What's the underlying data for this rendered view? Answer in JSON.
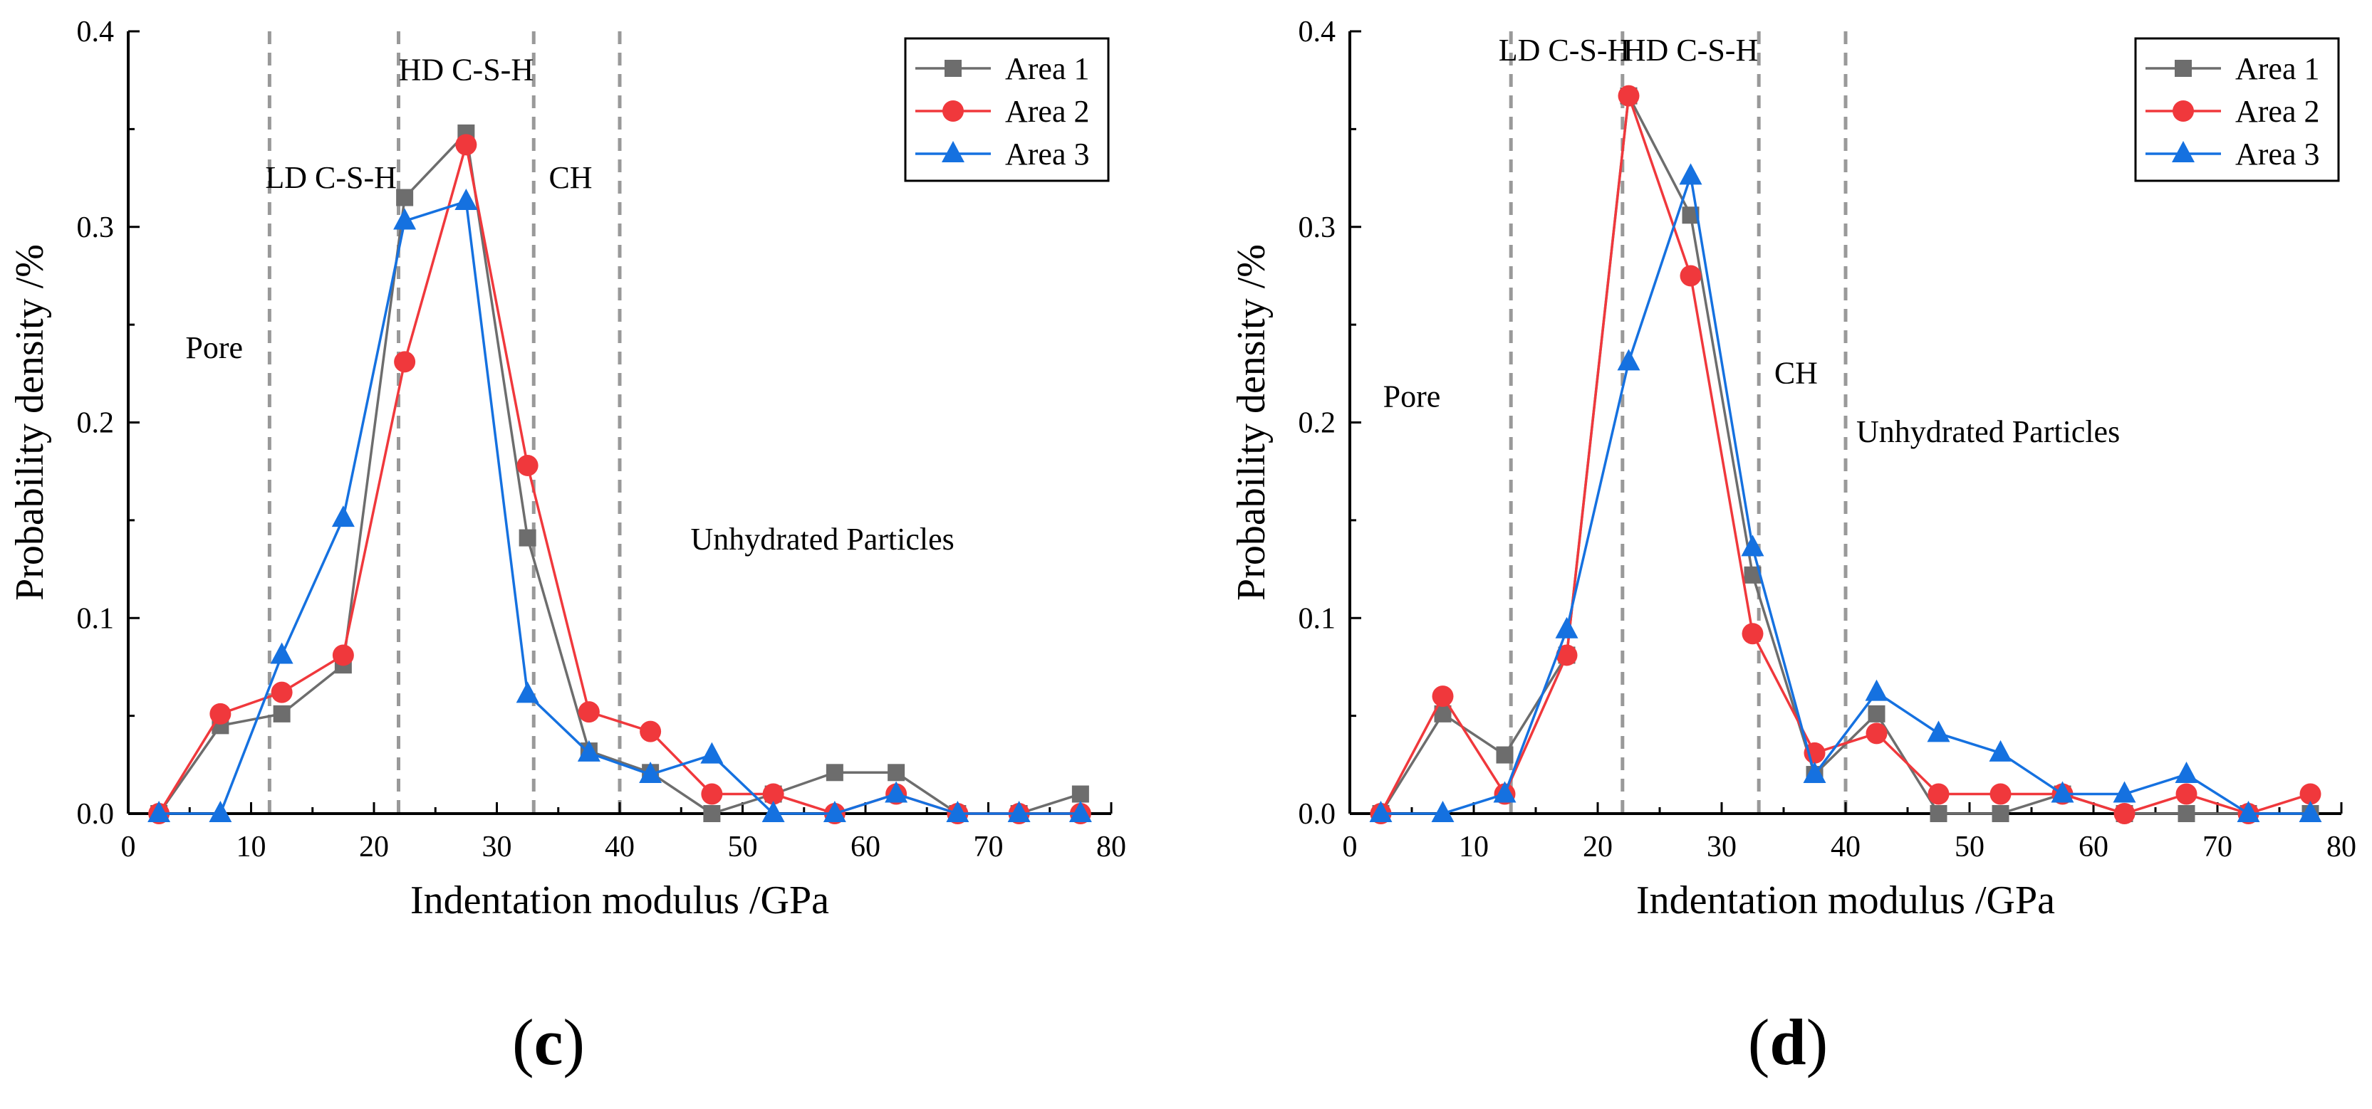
{
  "colors": {
    "area1": "#6d6d6d",
    "area2": "#f0383c",
    "area3": "#1571e0",
    "divider": "#999999",
    "axis": "#000000"
  },
  "chart_data": [
    {
      "type": "line",
      "panel_label": "(c)",
      "xlabel": "Indentation modulus /GPa",
      "ylabel": "Probability density /%",
      "xlim": [
        0,
        80
      ],
      "ylim": [
        0,
        0.4
      ],
      "xticks": [
        0,
        10,
        20,
        30,
        40,
        50,
        60,
        70,
        80
      ],
      "xtick_labels": [
        "0",
        "10",
        "20",
        "30",
        "40",
        "50",
        "60",
        "70",
        "80"
      ],
      "yticks": [
        0,
        0.1,
        0.2,
        0.3,
        0.4
      ],
      "ytick_labels": [
        "0.0",
        "0.1",
        "0.2",
        "0.3",
        "0.4"
      ],
      "legend_position": "top-right",
      "dividers": [
        11.5,
        22,
        33,
        40
      ],
      "regions": [
        {
          "label": "Pore",
          "x": 7,
          "y": 0.233
        },
        {
          "label": "LD C-S-H",
          "x": 16.5,
          "y": 0.32
        },
        {
          "label": "HD C-S-H",
          "x": 27.5,
          "y": 0.375
        },
        {
          "label": "CH",
          "x": 36,
          "y": 0.32
        },
        {
          "label": "Unhydrated Particles",
          "x": 56.5,
          "y": 0.135
        }
      ],
      "x": [
        2.5,
        7.5,
        12.5,
        17.5,
        22.5,
        27.5,
        32.5,
        37.5,
        42.5,
        47.5,
        52.5,
        57.5,
        62.5,
        67.5,
        72.5,
        77.5
      ],
      "series": [
        {
          "name": "Area 1",
          "marker": "square",
          "values": [
            0.0,
            0.045,
            0.051,
            0.076,
            0.315,
            0.348,
            0.141,
            0.032,
            0.021,
            0.0,
            0.01,
            0.021,
            0.021,
            0.0,
            0.0,
            0.01
          ]
        },
        {
          "name": "Area 2",
          "marker": "circle",
          "values": [
            0.0,
            0.051,
            0.062,
            0.081,
            0.231,
            0.342,
            0.178,
            0.052,
            0.042,
            0.01,
            0.01,
            0.0,
            0.01,
            0.0,
            0.0,
            0.0
          ]
        },
        {
          "name": "Area 3",
          "marker": "triangle",
          "values": [
            0.0,
            0.0,
            0.081,
            0.151,
            0.303,
            0.313,
            0.061,
            0.031,
            0.02,
            0.03,
            0.0,
            0.0,
            0.01,
            0.0,
            0.0,
            0.0
          ]
        }
      ]
    },
    {
      "type": "line",
      "panel_label": "(d)",
      "xlabel": "Indentation modulus /GPa",
      "ylabel": "Probability density /%",
      "xlim": [
        0,
        80
      ],
      "ylim": [
        0,
        0.4
      ],
      "xticks": [
        0,
        10,
        20,
        30,
        40,
        50,
        60,
        70,
        80
      ],
      "xtick_labels": [
        "0",
        "10",
        "20",
        "30",
        "40",
        "50",
        "60",
        "70",
        "80"
      ],
      "yticks": [
        0,
        0.1,
        0.2,
        0.3,
        0.4
      ],
      "ytick_labels": [
        "0.0",
        "0.1",
        "0.2",
        "0.3",
        "0.4"
      ],
      "legend_position": "top-right",
      "dividers": [
        13,
        22,
        33,
        40
      ],
      "regions": [
        {
          "label": "Pore",
          "x": 5,
          "y": 0.208
        },
        {
          "label": "LD C-S-H",
          "x": 17.3,
          "y": 0.385
        },
        {
          "label": "HD C-S-H",
          "x": 27.5,
          "y": 0.385
        },
        {
          "label": "CH",
          "x": 36,
          "y": 0.22
        },
        {
          "label": "Unhydrated Particles",
          "x": 51.5,
          "y": 0.19
        }
      ],
      "x": [
        2.5,
        7.5,
        12.5,
        17.5,
        22.5,
        27.5,
        32.5,
        37.5,
        42.5,
        47.5,
        52.5,
        57.5,
        62.5,
        67.5,
        72.5,
        77.5
      ],
      "series": [
        {
          "name": "Area 1",
          "marker": "square",
          "values": [
            0.0,
            0.051,
            0.03,
            0.081,
            0.367,
            0.306,
            0.122,
            0.02,
            0.051,
            0.0,
            0.0,
            0.01,
            0.0,
            0.0,
            0.0,
            0.0
          ]
        },
        {
          "name": "Area 2",
          "marker": "circle",
          "values": [
            0.0,
            0.06,
            0.01,
            0.081,
            0.367,
            0.275,
            0.092,
            0.031,
            0.041,
            0.01,
            0.01,
            0.01,
            0.0,
            0.01,
            0.0,
            0.01
          ]
        },
        {
          "name": "Area 3",
          "marker": "triangle",
          "values": [
            0.0,
            0.0,
            0.01,
            0.094,
            0.231,
            0.326,
            0.136,
            0.02,
            0.062,
            0.041,
            0.031,
            0.01,
            0.01,
            0.02,
            0.0,
            0.0
          ]
        }
      ]
    }
  ]
}
